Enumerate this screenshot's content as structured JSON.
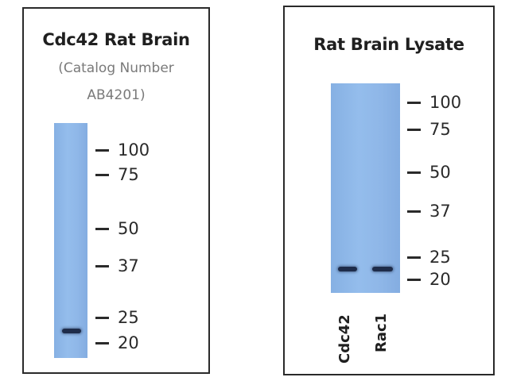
{
  "left_panel": {
    "title": "Cdc42 Rat Brain",
    "subtitle_line1": "(Catalog Number",
    "subtitle_line2": "AB4201)",
    "markers": [
      "100",
      "75",
      "50",
      "37",
      "25",
      "20"
    ]
  },
  "right_panel": {
    "title": "Rat Brain Lysate",
    "markers": [
      "100",
      "75",
      "50",
      "37",
      "25",
      "20"
    ],
    "lane_labels": [
      "Cdc42",
      "Rac1"
    ]
  },
  "colors": {
    "membrane": "#8fb7e8",
    "band": "#1e2c4a",
    "frame": "#2a2a2a"
  }
}
